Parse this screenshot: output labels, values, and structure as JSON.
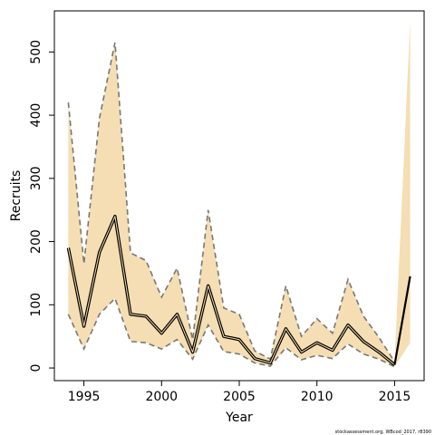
{
  "chart_data": {
    "type": "line",
    "title": "",
    "xlabel": "Year",
    "ylabel": "Recruits",
    "xlim": [
      1993.1,
      2016.9
    ],
    "ylim": [
      -20,
      565
    ],
    "x_ticks": [
      1995,
      2000,
      2005,
      2010,
      2015
    ],
    "y_ticks": [
      0,
      100,
      200,
      300,
      400,
      500
    ],
    "grid": false,
    "legend": "none",
    "colors": {
      "band_fill": "#f5deb3",
      "estimate_line": "#000000",
      "bound_line": "#777777",
      "axis": "#000000"
    },
    "series": [
      {
        "x": [
          1994,
          1995,
          1996,
          1997,
          1998,
          1999,
          2000,
          2001,
          2002,
          2003,
          2004,
          2005,
          2006,
          2007,
          2008,
          2009,
          2010,
          2011,
          2012,
          2013,
          2014,
          2015,
          2016
        ],
        "estimate": [
          190,
          66,
          183,
          240,
          85,
          82,
          55,
          85,
          25,
          130,
          50,
          45,
          15,
          8,
          62,
          25,
          40,
          28,
          68,
          42,
          25,
          5,
          145
        ],
        "lower": [
          85,
          30,
          85,
          110,
          42,
          40,
          30,
          45,
          14,
          68,
          26,
          22,
          8,
          3,
          32,
          13,
          20,
          15,
          38,
          22,
          14,
          2,
          40
        ],
        "upper": [
          420,
          165,
          395,
          515,
          182,
          170,
          112,
          158,
          45,
          250,
          95,
          85,
          27,
          14,
          130,
          50,
          78,
          55,
          140,
          82,
          48,
          10,
          550
        ]
      }
    ]
  },
  "footnote": "stockassessment.org, WBcod_2017, r8390"
}
